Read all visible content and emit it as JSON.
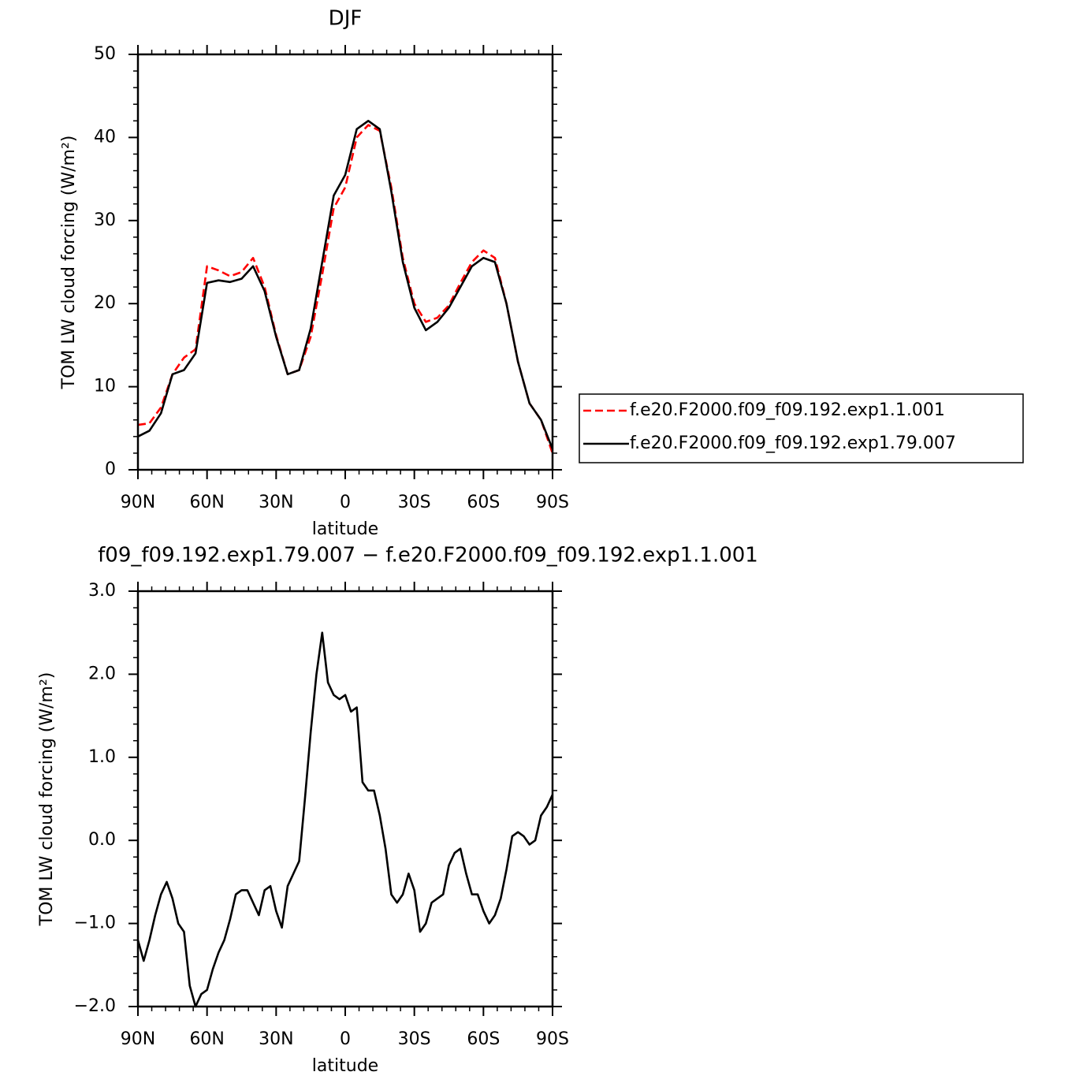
{
  "chart_data": [
    {
      "type": "line",
      "title": "DJF",
      "xlabel": "latitude",
      "ylabel": "TOM LW cloud forcing (W/m²)",
      "x": [
        90,
        85,
        80,
        75,
        70,
        65,
        60,
        55,
        50,
        45,
        40,
        35,
        30,
        25,
        20,
        15,
        10,
        5,
        0,
        -5,
        -10,
        -15,
        -20,
        -25,
        -30,
        -35,
        -40,
        -45,
        -50,
        -55,
        -60,
        -65,
        -70,
        -75,
        -80,
        -85,
        -90
      ],
      "series": [
        {
          "name": "f.e20.F2000.f09_f09.192.exp1.1.001",
          "color": "#ff0000",
          "line_style": "dashed",
          "values": [
            5.4,
            5.6,
            7.5,
            11.5,
            13.5,
            14.5,
            24.5,
            24.0,
            23.3,
            23.8,
            25.5,
            22.0,
            16.2,
            11.5,
            12.0,
            16.0,
            23.5,
            31.5,
            34.0,
            40.0,
            41.5,
            40.8,
            34.0,
            25.5,
            20.0,
            17.8,
            18.3,
            19.8,
            22.5,
            25.0,
            26.4,
            25.5,
            20.0,
            13.0,
            8.0,
            6.0,
            2.0
          ]
        },
        {
          "name": "f.e20.F2000.f09_f09.192.exp1.79.007",
          "color": "#000000",
          "line_style": "solid",
          "values": [
            4.0,
            4.7,
            6.8,
            11.5,
            12.0,
            14.0,
            22.5,
            22.8,
            22.6,
            23.0,
            24.5,
            21.5,
            16.0,
            11.5,
            12.0,
            17.0,
            25.0,
            33.0,
            35.5,
            41.0,
            42.0,
            41.0,
            33.5,
            25.0,
            19.5,
            16.8,
            17.8,
            19.5,
            22.0,
            24.5,
            25.5,
            25.0,
            20.0,
            13.0,
            8.0,
            6.0,
            2.5
          ]
        }
      ],
      "xlim": [
        90,
        -90
      ],
      "xticks": [
        {
          "value": 90,
          "label": "90N"
        },
        {
          "value": 60,
          "label": "60N"
        },
        {
          "value": 30,
          "label": "30N"
        },
        0,
        {
          "value": -30,
          "label": "30S"
        },
        {
          "value": -60,
          "label": "60S"
        },
        {
          "value": -90,
          "label": "90S"
        }
      ],
      "ylim": [
        0,
        50
      ],
      "yticks": [
        0,
        10,
        20,
        30,
        40,
        50
      ],
      "legend": "right"
    },
    {
      "type": "line",
      "title": "f09_f09.192.exp1.79.007 − f.e20.F2000.f09_f09.192.exp1.1.001",
      "xlabel": "latitude",
      "ylabel": "TOM LW cloud forcing (W/m²)",
      "x": [
        90,
        87.5,
        85,
        82.5,
        80,
        77.5,
        75,
        72.5,
        70,
        67.5,
        65,
        62.5,
        60,
        57.5,
        55,
        52.5,
        50,
        47.5,
        45,
        42.5,
        40,
        37.5,
        35,
        32.5,
        30,
        27.5,
        25,
        22.5,
        20,
        17.5,
        15,
        12.5,
        10,
        7.5,
        5,
        2.5,
        0,
        -2.5,
        -5,
        -7.5,
        -10,
        -12.5,
        -15,
        -17.5,
        -20,
        -22.5,
        -25,
        -27.5,
        -30,
        -32.5,
        -35,
        -37.5,
        -40,
        -42.5,
        -45,
        -47.5,
        -50,
        -52.5,
        -55,
        -57.5,
        -60,
        -62.5,
        -65,
        -67.5,
        -70,
        -72.5,
        -75,
        -77.5,
        -80,
        -82.5,
        -85,
        -87.5,
        -90
      ],
      "series": [
        {
          "color": "#000000",
          "line_style": "solid",
          "values": [
            -1.2,
            -1.45,
            -1.2,
            -0.9,
            -0.65,
            -0.5,
            -0.7,
            -1.0,
            -1.1,
            -1.75,
            -2.0,
            -1.85,
            -1.8,
            -1.55,
            -1.35,
            -1.2,
            -0.95,
            -0.65,
            -0.6,
            -0.6,
            -0.75,
            -0.9,
            -0.6,
            -0.55,
            -0.85,
            -1.05,
            -0.55,
            -0.4,
            -0.25,
            0.5,
            1.3,
            2.0,
            2.5,
            1.9,
            1.75,
            1.7,
            1.75,
            1.55,
            1.6,
            0.7,
            0.6,
            0.6,
            0.3,
            -0.1,
            -0.65,
            -0.75,
            -0.65,
            -0.4,
            -0.6,
            -1.1,
            -1.0,
            -0.75,
            -0.7,
            -0.65,
            -0.3,
            -0.15,
            -0.1,
            -0.4,
            -0.65,
            -0.65,
            -0.85,
            -1.0,
            -0.9,
            -0.7,
            -0.35,
            0.05,
            0.1,
            0.05,
            -0.05,
            0.0,
            0.3,
            0.4,
            0.55
          ]
        }
      ],
      "xlim": [
        90,
        -90
      ],
      "xticks": [
        {
          "value": 90,
          "label": "90N"
        },
        {
          "value": 60,
          "label": "60N"
        },
        {
          "value": 30,
          "label": "30N"
        },
        0,
        {
          "value": -30,
          "label": "30S"
        },
        {
          "value": -60,
          "label": "60S"
        },
        {
          "value": -90,
          "label": "90S"
        }
      ],
      "ylim": [
        -2,
        3
      ],
      "yticks": [
        {
          "value": -2,
          "label": "−2.0"
        },
        {
          "value": -1,
          "label": "−1.0"
        },
        {
          "value": 0,
          "label": "0.0"
        },
        {
          "value": 1,
          "label": "1.0"
        },
        {
          "value": 2,
          "label": "2.0"
        },
        {
          "value": 3,
          "label": "3.0"
        }
      ]
    }
  ]
}
